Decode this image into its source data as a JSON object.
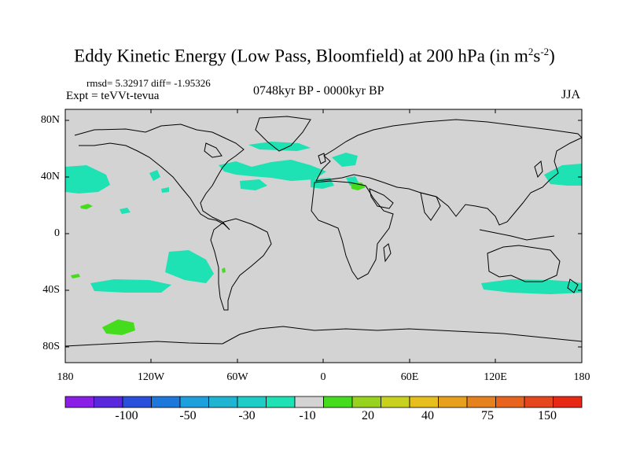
{
  "title": {
    "prefix": "Eddy Kinetic Energy (Low Pass, Bloomfield) at 200 hPa (in m",
    "sup1": "2",
    "mid": "s",
    "sup2": "-2",
    "suffix": ")"
  },
  "stats": "rmsd= 5.32917  diff= -1.95326",
  "experiment": "Expt = teVVt-tevua",
  "period": "0748kyr BP - 0000kyr BP",
  "season": "JJA",
  "map": {
    "background_color": "#d3d3d3",
    "latitude_labels": [
      "80N",
      "40N",
      "0",
      "40S",
      "80S"
    ],
    "longitude_labels": [
      "180",
      "120W",
      "60W",
      "0",
      "60E",
      "120E",
      "180"
    ]
  },
  "colorbar": {
    "colors": [
      "#8a1ee6",
      "#5a28dc",
      "#2850dc",
      "#1e78dc",
      "#1ea0dc",
      "#1eb4d2",
      "#1ecdc8",
      "#1ee1b4",
      "#d3d3d3",
      "#46dc1e",
      "#96d21e",
      "#c8d21e",
      "#e6be1e",
      "#e6a01e",
      "#e6821e",
      "#e6641e",
      "#e6461e",
      "#e62814"
    ],
    "labels": [
      "-100",
      "-50",
      "-30",
      "-10",
      "20",
      "40",
      "75",
      "150"
    ]
  }
}
